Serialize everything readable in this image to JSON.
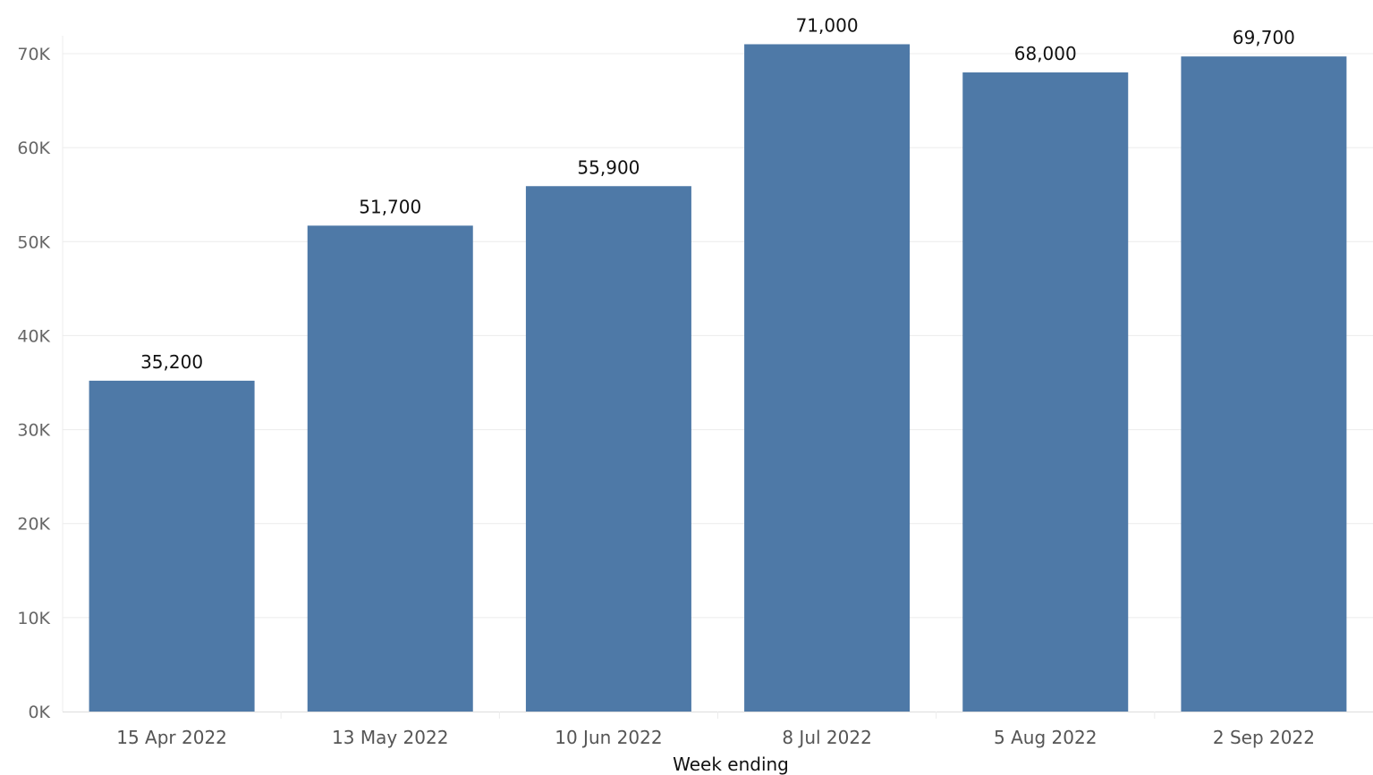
{
  "chart_data": {
    "type": "bar",
    "title": "",
    "xlabel": "Week ending",
    "ylabel": "",
    "categories": [
      "15 Apr 2022",
      "13 May 2022",
      "10 Jun 2022",
      "8 Jul 2022",
      "5 Aug 2022",
      "2 Sep 2022"
    ],
    "values": [
      35200,
      51700,
      55900,
      71000,
      68000,
      69700
    ],
    "value_labels": [
      "35,200",
      "51,700",
      "55,900",
      "71,000",
      "68,000",
      "69,700"
    ],
    "yticks": [
      0,
      10000,
      20000,
      30000,
      40000,
      50000,
      60000,
      70000
    ],
    "ytick_labels": [
      "0K",
      "10K",
      "20K",
      "30K",
      "40K",
      "50K",
      "60K",
      "70K"
    ],
    "ylim": [
      0,
      71000
    ],
    "grid": true,
    "bar_color": "#4e79a7"
  }
}
